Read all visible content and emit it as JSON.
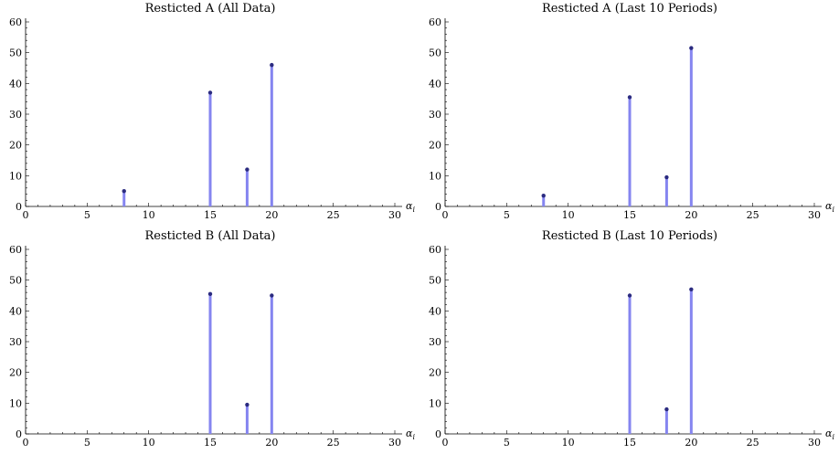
{
  "chart_data": [
    {
      "type": "stem",
      "title": "Resticted A (All Data)",
      "xlabel": "α",
      "xlabel_sub": "i",
      "xlim": [
        0,
        30
      ],
      "ylim": [
        0,
        60
      ],
      "x_ticks": [
        0,
        5,
        10,
        15,
        20,
        25,
        30
      ],
      "y_ticks": [
        0,
        10,
        20,
        30,
        40,
        50,
        60
      ],
      "x": [
        8,
        15,
        18,
        20
      ],
      "values": [
        5,
        37,
        12,
        46
      ],
      "stem_color": "#8585f0",
      "dot_color": "#2b2b80"
    },
    {
      "type": "stem",
      "title": "Resticted A (Last 10 Periods)",
      "xlabel": "α",
      "xlabel_sub": "i",
      "xlim": [
        0,
        30
      ],
      "ylim": [
        0,
        60
      ],
      "x_ticks": [
        0,
        5,
        10,
        15,
        20,
        25,
        30
      ],
      "y_ticks": [
        0,
        10,
        20,
        30,
        40,
        50,
        60
      ],
      "x": [
        8,
        15,
        18,
        20
      ],
      "values": [
        3.5,
        35.5,
        9.5,
        51.5
      ],
      "stem_color": "#8585f0",
      "dot_color": "#2b2b80"
    },
    {
      "type": "stem",
      "title": "Resticted B (All Data)",
      "xlabel": "α",
      "xlabel_sub": "i",
      "xlim": [
        0,
        30
      ],
      "ylim": [
        0,
        60
      ],
      "x_ticks": [
        0,
        5,
        10,
        15,
        20,
        25,
        30
      ],
      "y_ticks": [
        0,
        10,
        20,
        30,
        40,
        50,
        60
      ],
      "x": [
        15,
        18,
        20
      ],
      "values": [
        45.5,
        9.5,
        45
      ],
      "stem_color": "#8585f0",
      "dot_color": "#2b2b80"
    },
    {
      "type": "stem",
      "title": "Resticted B (Last 10 Periods)",
      "xlabel": "α",
      "xlabel_sub": "i",
      "xlim": [
        0,
        30
      ],
      "ylim": [
        0,
        60
      ],
      "x_ticks": [
        0,
        5,
        10,
        15,
        20,
        25,
        30
      ],
      "y_ticks": [
        0,
        10,
        20,
        30,
        40,
        50,
        60
      ],
      "x": [
        15,
        18,
        20
      ],
      "values": [
        45,
        8,
        47
      ],
      "stem_color": "#8585f0",
      "dot_color": "#2b2b80"
    }
  ]
}
